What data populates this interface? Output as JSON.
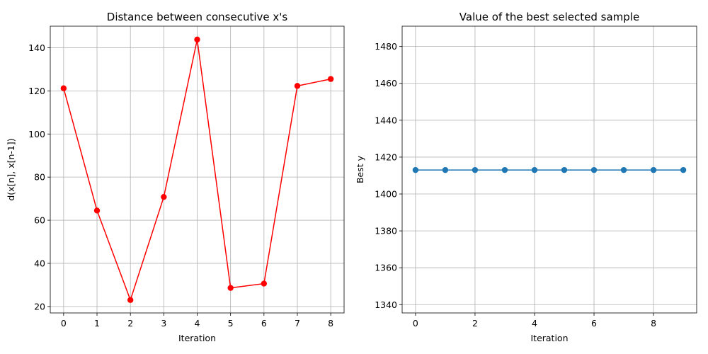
{
  "chart_data": [
    {
      "type": "line",
      "title": "Distance between consecutive x's",
      "xlabel": "Iteration",
      "ylabel": "d(x[n], x[n-1])",
      "x": [
        0,
        1,
        2,
        3,
        4,
        5,
        6,
        7,
        8
      ],
      "series": [
        {
          "values": [
            121.2,
            64.5,
            23.0,
            70.8,
            143.8,
            28.6,
            30.6,
            122.3,
            125.5
          ],
          "color": "#ff0000",
          "marker": "circle"
        }
      ],
      "xlim": [
        -0.4,
        8.4
      ],
      "ylim": [
        17,
        150
      ],
      "xticks": [
        0,
        1,
        2,
        3,
        4,
        5,
        6,
        7,
        8
      ],
      "yticks": [
        20,
        40,
        60,
        80,
        100,
        120,
        140
      ],
      "grid": true
    },
    {
      "type": "line",
      "title": "Value of the best selected sample",
      "xlabel": "Iteration",
      "ylabel": "Best y",
      "x": [
        0,
        1,
        2,
        3,
        4,
        5,
        6,
        7,
        8,
        9
      ],
      "series": [
        {
          "values": [
            1413,
            1413,
            1413,
            1413,
            1413,
            1413,
            1413,
            1413,
            1413,
            1413
          ],
          "color": "#1f77b4",
          "marker": "circle"
        }
      ],
      "xlim": [
        -0.45,
        9.45
      ],
      "ylim": [
        1335.5,
        1491
      ],
      "xticks": [
        0,
        2,
        4,
        6,
        8
      ],
      "yticks": [
        1340,
        1360,
        1380,
        1400,
        1420,
        1440,
        1460,
        1480
      ],
      "grid": true
    }
  ]
}
